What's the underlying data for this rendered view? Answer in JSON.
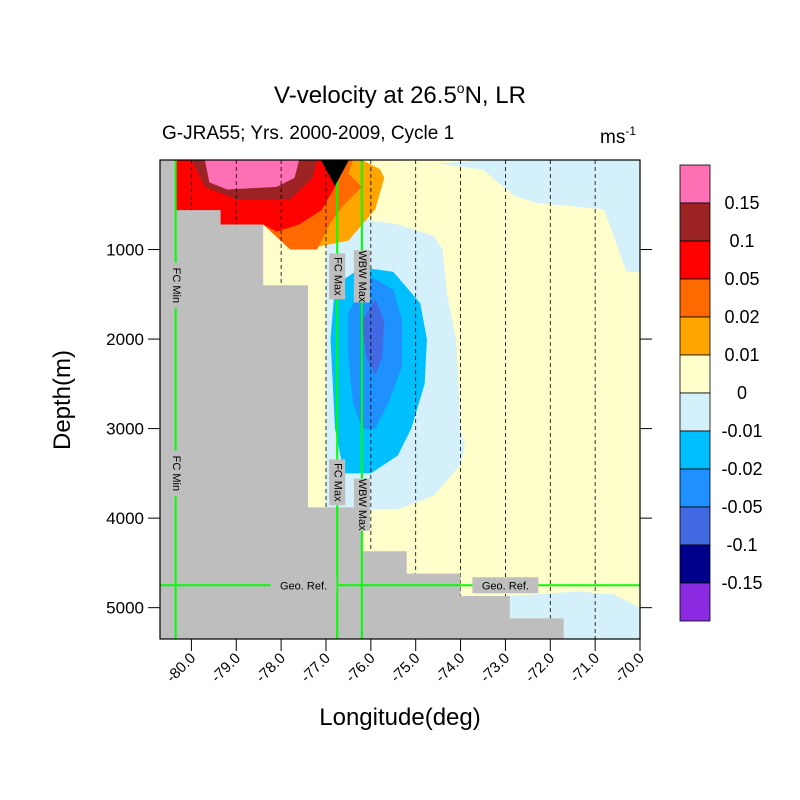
{
  "chart_data": {
    "type": "heatmap",
    "title_main": "V-velocity at 26.5",
    "title_sup": "o",
    "title_tail": "N, LR",
    "subtitle_left": "G-JRA55; Yrs. 2000-2009, Cycle 1",
    "units_base": "ms",
    "units_sup": "-1",
    "xlabel": "Longitude(deg)",
    "ylabel": "Depth(m)",
    "xlim": [
      -80.7,
      -70.0
    ],
    "ylim": [
      0,
      5350
    ],
    "x_ticks": [
      -80.0,
      -79.0,
      -78.0,
      -77.0,
      -76.0,
      -75.0,
      -74.0,
      -73.0,
      -72.0,
      -71.0,
      -70.0
    ],
    "x_tick_labels": [
      "-80.0",
      "-79.0",
      "-78.0",
      "-77.0",
      "-76.0",
      "-75.0",
      "-74.0",
      "-73.0",
      "-72.0",
      "-71.0",
      "-70.0"
    ],
    "y_ticks": [
      1000,
      2000,
      3000,
      4000,
      5000
    ],
    "y_tick_labels": [
      "1000",
      "2000",
      "3000",
      "4000",
      "5000"
    ],
    "colorbar": {
      "colors": [
        "#ff6fb4",
        "#9b2323",
        "#ff0000",
        "#ff6a00",
        "#ffa500",
        "#ffffcc",
        "#d4f0fa",
        "#00bfff",
        "#1e90ff",
        "#4169e1",
        "#00008b",
        "#8a2be2"
      ],
      "labels": [
        "0.15",
        "0.1",
        "0.05",
        "0.02",
        "0.01",
        "0",
        "-0.01",
        "-0.02",
        "-0.05",
        "-0.1",
        "-0.15"
      ]
    },
    "fill_colors": {
      "land": "#bebebe",
      "pink": "#ff6fb4",
      "brown": "#9b2323",
      "red": "#ff0000",
      "darkorange": "#ff6a00",
      "orange": "#ffa500",
      "lightyellow": "#ffffcc",
      "lightblue": "#d4f0fa",
      "deepskyblue": "#00bfff",
      "dodgerblue": "#1e90ff",
      "royalblue": "#4169e1",
      "green_lines": "#00ff00"
    },
    "bathymetry": [
      {
        "x": -80.7,
        "depth": 0
      },
      {
        "x": -80.35,
        "depth": 0
      },
      {
        "x": -80.35,
        "depth": 560
      },
      {
        "x": -79.35,
        "depth": 560
      },
      {
        "x": -79.35,
        "depth": 720
      },
      {
        "x": -78.4,
        "depth": 720
      },
      {
        "x": -78.4,
        "depth": 1400
      },
      {
        "x": -77.4,
        "depth": 1400
      },
      {
        "x": -77.4,
        "depth": 3880
      },
      {
        "x": -76.2,
        "depth": 3880
      },
      {
        "x": -76.2,
        "depth": 4370
      },
      {
        "x": -75.2,
        "depth": 4370
      },
      {
        "x": -75.2,
        "depth": 4620
      },
      {
        "x": -74.0,
        "depth": 4620
      },
      {
        "x": -74.0,
        "depth": 4870
      },
      {
        "x": -72.9,
        "depth": 4870
      },
      {
        "x": -72.9,
        "depth": 5120
      },
      {
        "x": -71.7,
        "depth": 5120
      },
      {
        "x": -71.7,
        "depth": 5350
      }
    ],
    "contours": [
      {
        "level": "lightyellow",
        "points": [
          [
            -78.4,
            0
          ],
          [
            -75.5,
            0
          ],
          [
            -75.3,
            140
          ],
          [
            -74.5,
            40
          ],
          [
            -73.5,
            110
          ],
          [
            -72.8,
            400
          ],
          [
            -72.3,
            480
          ],
          [
            -70.8,
            550
          ],
          [
            -70.3,
            1250
          ],
          [
            -70.6,
            2200
          ],
          [
            -70.9,
            3700
          ],
          [
            -71.5,
            4200
          ],
          [
            -71.7,
            4400
          ],
          [
            -71.7,
            5350
          ],
          [
            -78.4,
            5350
          ]
        ]
      },
      {
        "level": "lightblue",
        "points": [
          [
            -73.5,
            0
          ],
          [
            -70.0,
            0
          ],
          [
            -70.0,
            1250
          ],
          [
            -70.3,
            1250
          ],
          [
            -70.8,
            550
          ],
          [
            -72.3,
            480
          ],
          [
            -72.8,
            400
          ],
          [
            -73.5,
            110
          ],
          [
            -74.5,
            40
          ]
        ]
      },
      {
        "level": "lightblue",
        "points": [
          [
            -77.0,
            700
          ],
          [
            -76.3,
            650
          ],
          [
            -75.4,
            720
          ],
          [
            -74.6,
            850
          ],
          [
            -74.4,
            1000
          ],
          [
            -74.3,
            1500
          ],
          [
            -74.1,
            2000
          ],
          [
            -74.0,
            3000
          ],
          [
            -73.9,
            3200
          ],
          [
            -74.0,
            3400
          ],
          [
            -74.6,
            3750
          ],
          [
            -75.4,
            3900
          ],
          [
            -76.2,
            3900
          ],
          [
            -77.0,
            3880
          ]
        ]
      },
      {
        "level": "lightblue",
        "points": [
          [
            -70.0,
            5000
          ],
          [
            -70.6,
            4850
          ],
          [
            -71.4,
            4820
          ],
          [
            -72.9,
            4870
          ],
          [
            -72.9,
            5120
          ],
          [
            -71.7,
            5120
          ],
          [
            -71.7,
            5350
          ],
          [
            -70.0,
            5350
          ]
        ]
      },
      {
        "level": "deepskyblue",
        "points": [
          [
            -76.8,
            1400
          ],
          [
            -76.2,
            1200
          ],
          [
            -75.5,
            1250
          ],
          [
            -74.9,
            1600
          ],
          [
            -74.75,
            2000
          ],
          [
            -74.8,
            2500
          ],
          [
            -75.1,
            3000
          ],
          [
            -75.4,
            3300
          ],
          [
            -76.0,
            3500
          ],
          [
            -76.6,
            3500
          ],
          [
            -76.8,
            3000
          ],
          [
            -76.9,
            2000
          ]
        ]
      },
      {
        "level": "dodgerblue",
        "points": [
          [
            -76.5,
            1700
          ],
          [
            -76.0,
            1300
          ],
          [
            -75.5,
            1450
          ],
          [
            -75.3,
            1800
          ],
          [
            -75.3,
            2300
          ],
          [
            -75.6,
            2700
          ],
          [
            -75.9,
            3000
          ],
          [
            -76.2,
            3000
          ],
          [
            -76.4,
            2700
          ],
          [
            -76.5,
            2200
          ]
        ]
      },
      {
        "level": "royalblue",
        "points": [
          [
            -76.2,
            1800
          ],
          [
            -75.9,
            1550
          ],
          [
            -75.7,
            1800
          ],
          [
            -75.75,
            2200
          ],
          [
            -75.9,
            2400
          ],
          [
            -76.1,
            2200
          ]
        ]
      },
      {
        "level": "orange",
        "points": [
          [
            -79.35,
            0
          ],
          [
            -76.2,
            0
          ],
          [
            -75.8,
            100
          ],
          [
            -75.7,
            200
          ],
          [
            -75.9,
            550
          ],
          [
            -76.5,
            900
          ],
          [
            -77.5,
            1000
          ],
          [
            -78.4,
            720
          ],
          [
            -79.35,
            720
          ]
        ]
      },
      {
        "level": "darkorange",
        "points": [
          [
            -79.35,
            0
          ],
          [
            -76.4,
            0
          ],
          [
            -76.5,
            150
          ],
          [
            -76.2,
            300
          ],
          [
            -76.6,
            500
          ],
          [
            -76.9,
            700
          ],
          [
            -77.2,
            1000
          ],
          [
            -77.8,
            1000
          ],
          [
            -78.4,
            720
          ],
          [
            -79.35,
            720
          ]
        ]
      },
      {
        "level": "red",
        "points": [
          [
            -80.35,
            0
          ],
          [
            -76.7,
            0
          ],
          [
            -76.8,
            300
          ],
          [
            -77.1,
            560
          ],
          [
            -77.6,
            720
          ],
          [
            -78.1,
            800
          ],
          [
            -78.4,
            720
          ],
          [
            -79.35,
            720
          ],
          [
            -80.35,
            560
          ]
        ]
      },
      {
        "level": "brown",
        "points": [
          [
            -80.0,
            0
          ],
          [
            -77.2,
            0
          ],
          [
            -77.3,
            200
          ],
          [
            -77.8,
            440
          ],
          [
            -79.0,
            440
          ],
          [
            -79.7,
            300
          ]
        ]
      },
      {
        "level": "pink",
        "points": [
          [
            -79.7,
            0
          ],
          [
            -77.6,
            0
          ],
          [
            -77.7,
            200
          ],
          [
            -78.1,
            300
          ],
          [
            -79.2,
            330
          ],
          [
            -79.6,
            250
          ]
        ]
      }
    ],
    "dashed_x": [
      -80.0,
      -79.0,
      -78.0,
      -77.0,
      -76.0,
      -75.0,
      -74.0,
      -73.0,
      -72.0,
      -71.0
    ],
    "marker_x": -76.8,
    "lines": [
      {
        "label": "FC Min",
        "x": -80.35,
        "label_depths": [
          1400,
          3500
        ]
      },
      {
        "label": "FC Max",
        "x": -76.75,
        "label_depths": [
          1300,
          3600
        ]
      },
      {
        "label": "WBW Max",
        "x": -76.2,
        "label_depths": [
          1300,
          3850
        ]
      }
    ],
    "geo_ref": {
      "label": "Geo. Ref.",
      "depth": 4750,
      "label_xs": [
        -77.5,
        -73.0
      ]
    }
  }
}
